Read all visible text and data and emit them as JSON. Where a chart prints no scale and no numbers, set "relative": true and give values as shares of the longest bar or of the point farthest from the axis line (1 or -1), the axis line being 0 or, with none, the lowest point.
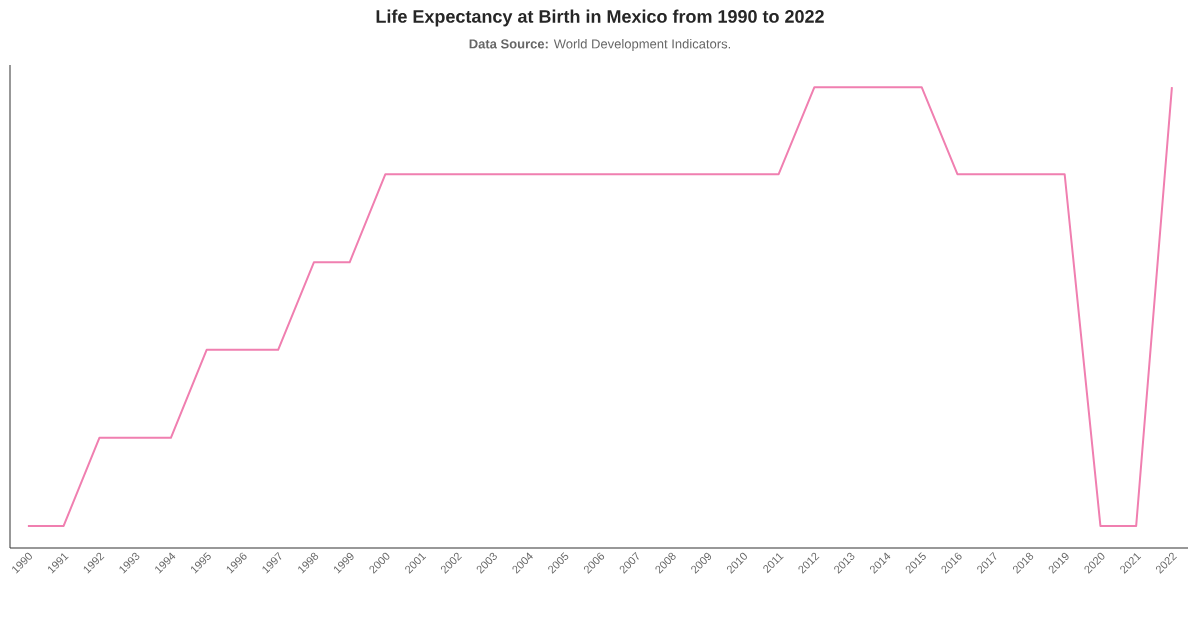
{
  "chart_data": {
    "type": "line",
    "title": "Life Expectancy at Birth in Mexico from 1990 to 2022",
    "annotations": [
      "**Data Source:** World Development Indicators."
    ],
    "relative": true,
    "categories": [
      "1990",
      "1991",
      "1992",
      "1993",
      "1994",
      "1995",
      "1996",
      "1997",
      "1998",
      "1999",
      "2000",
      "2001",
      "2002",
      "2003",
      "2004",
      "2005",
      "2006",
      "2007",
      "2008",
      "2009",
      "2010",
      "2011",
      "2012",
      "2013",
      "2014",
      "2015",
      "2016",
      "2017",
      "2018",
      "2019",
      "2020",
      "2021",
      "2022"
    ],
    "color": "#f07fb0",
    "values": [
      0.048,
      0.048,
      0.239,
      0.239,
      0.239,
      0.43,
      0.43,
      0.43,
      0.62,
      0.62,
      0.811,
      0.811,
      0.811,
      0.811,
      0.811,
      0.811,
      0.811,
      0.811,
      0.811,
      0.811,
      0.811,
      0.811,
      1,
      1,
      1,
      1,
      0.811,
      0.811,
      0.811,
      0.811,
      0.048,
      0.048,
      1
    ]
  }
}
